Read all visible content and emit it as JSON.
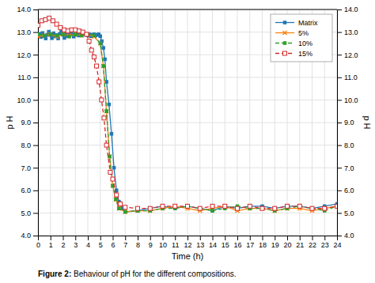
{
  "chart_data": {
    "type": "line",
    "xlabel": "Time (h)",
    "ylabel": "p H",
    "y2label": "p H",
    "caption_bold": "Figure 2:",
    "caption": " Behaviour of pH for the different compositions.",
    "xlim": [
      0,
      24
    ],
    "ylim": [
      4,
      14
    ],
    "y2lim": [
      4,
      14
    ],
    "xticks": [
      0,
      1,
      2,
      3,
      4,
      5,
      6,
      7,
      8,
      9,
      10,
      11,
      12,
      13,
      14,
      15,
      16,
      17,
      18,
      19,
      20,
      21,
      22,
      23,
      24
    ],
    "yticks": [
      {
        "value": 4,
        "label": "4.0"
      },
      {
        "value": 5,
        "label": "5.0"
      },
      {
        "value": 6,
        "label": "6.0"
      },
      {
        "value": 7,
        "label": "7.0"
      },
      {
        "value": 8,
        "label": "8.0"
      },
      {
        "value": 9,
        "label": "9.0"
      },
      {
        "value": 10,
        "label": "10.0"
      },
      {
        "value": 11,
        "label": "11.0"
      },
      {
        "value": 12,
        "label": "12.0"
      },
      {
        "value": 13,
        "label": "13.0"
      },
      {
        "value": 14,
        "label": "14.0"
      }
    ],
    "y2ticks": [
      {
        "value": 4,
        "label": "4.0"
      },
      {
        "value": 5,
        "label": "5.0"
      },
      {
        "value": 6,
        "label": "6.0"
      },
      {
        "value": 7,
        "label": "7.0"
      },
      {
        "value": 8,
        "label": "8.0"
      },
      {
        "value": 9,
        "label": "9.0"
      },
      {
        "value": 10,
        "label": "10.0"
      },
      {
        "value": 11,
        "label": "11.0"
      },
      {
        "value": 12,
        "label": "12.0"
      },
      {
        "value": 13,
        "label": "13.0"
      },
      {
        "value": 14,
        "label": "14.0"
      }
    ],
    "grid": true,
    "legend": "upper right",
    "series": [
      {
        "name": "Matrix",
        "marker": "square",
        "line_style": "solid",
        "x": [
          0.0,
          0.12,
          0.25,
          0.37,
          0.5,
          0.62,
          0.75,
          0.87,
          1.0,
          1.12,
          1.25,
          1.37,
          1.5,
          1.62,
          1.75,
          1.87,
          2.0,
          2.12,
          2.25,
          2.37,
          2.5,
          2.62,
          2.75,
          2.87,
          3.0,
          3.12,
          3.25,
          3.37,
          3.5,
          3.62,
          3.75,
          3.87,
          4.0,
          4.12,
          4.25,
          4.37,
          4.5,
          4.62,
          4.75,
          4.87,
          5.0,
          5.12,
          5.25,
          5.37,
          5.5,
          5.7,
          5.9,
          6.1,
          6.3,
          6.5,
          6.8,
          7.0,
          8.0,
          9.0,
          10.0,
          11.0,
          12.0,
          13.0,
          14.0,
          15.0,
          16.0,
          17.0,
          18.0,
          19.0,
          20.0,
          21.0,
          22.0,
          23.0,
          24.0
        ],
        "values": [
          12.85,
          12.92,
          12.78,
          12.96,
          12.82,
          12.72,
          12.88,
          13.02,
          12.87,
          12.73,
          12.95,
          12.82,
          12.87,
          12.72,
          12.92,
          13.02,
          12.88,
          12.74,
          12.96,
          12.82,
          12.9,
          13.0,
          12.95,
          12.8,
          12.9,
          12.88,
          12.85,
          12.9,
          12.85,
          12.95,
          12.92,
          12.88,
          12.85,
          12.9,
          12.82,
          12.88,
          12.9,
          12.85,
          12.88,
          12.9,
          12.82,
          12.6,
          12.3,
          11.8,
          10.8,
          9.8,
          8.5,
          7.0,
          6.0,
          5.5,
          5.2,
          5.05,
          5.1,
          5.2,
          5.3,
          5.2,
          5.3,
          5.2,
          5.1,
          5.3,
          5.2,
          5.3,
          5.3,
          5.2,
          5.3,
          5.3,
          5.2,
          5.3,
          5.4
        ]
      },
      {
        "name": "5%",
        "marker": "x",
        "line_style": "solid",
        "x": [
          0,
          0.5,
          1.0,
          1.5,
          2.0,
          2.5,
          3.0,
          3.5,
          4.0,
          4.5,
          5.0,
          5.25,
          5.5,
          5.75,
          6.0,
          6.25,
          6.5,
          7.0,
          8.0,
          9.0,
          10.0,
          11.0,
          12.0,
          13.0,
          14.0,
          15.0,
          16.0,
          17.0,
          18.0,
          19.0,
          20.0,
          21.0,
          22.0,
          23.0,
          24.0
        ],
        "values": [
          12.8,
          12.85,
          12.9,
          12.8,
          12.9,
          12.85,
          12.9,
          12.85,
          12.9,
          12.8,
          12.5,
          11.5,
          9.5,
          7.5,
          6.2,
          5.6,
          5.2,
          5.05,
          5.1,
          5.1,
          5.2,
          5.3,
          5.2,
          5.1,
          5.2,
          5.3,
          5.1,
          5.2,
          5.2,
          5.1,
          5.2,
          5.2,
          5.1,
          5.2,
          5.3
        ]
      },
      {
        "name": "10%",
        "marker": "square",
        "line_style": "dashed",
        "x": [
          0,
          0.5,
          1.0,
          1.5,
          2.0,
          2.5,
          3.0,
          3.5,
          4.0,
          4.5,
          5.0,
          5.25,
          5.5,
          5.75,
          6.0,
          6.25,
          6.5,
          7.0,
          8.0,
          9.0,
          10.0,
          11.0,
          12.0,
          13.0,
          14.0,
          15.0,
          16.0,
          17.0,
          18.0,
          19.0,
          20.0,
          21.0,
          22.0,
          23.0,
          24.0
        ],
        "values": [
          12.9,
          12.85,
          12.9,
          12.85,
          12.9,
          12.8,
          12.9,
          12.85,
          12.9,
          12.85,
          12.5,
          11.5,
          9.5,
          7.5,
          6.2,
          5.6,
          5.2,
          5.05,
          5.1,
          5.1,
          5.2,
          5.2,
          5.3,
          5.2,
          5.1,
          5.2,
          5.3,
          5.2,
          5.2,
          5.1,
          5.2,
          5.3,
          5.2,
          5.1,
          5.3
        ]
      },
      {
        "name": "15%",
        "marker": "square-open",
        "line_style": "dashed",
        "x": [
          0,
          0.3,
          0.6,
          0.9,
          1.2,
          1.5,
          1.8,
          2.1,
          2.4,
          2.7,
          3.0,
          3.3,
          3.6,
          3.9,
          4.1,
          4.3,
          4.5,
          4.7,
          4.9,
          5.1,
          5.3,
          5.5,
          5.8,
          6.0,
          6.3,
          6.6,
          7.0,
          8.0,
          9.0,
          10.0,
          11.0,
          12.0,
          13.0,
          14.0,
          15.0,
          16.0,
          17.0,
          18.0,
          19.0,
          20.0,
          21.0,
          22.0,
          23.0,
          24.0
        ],
        "values": [
          13.3,
          13.5,
          13.55,
          13.62,
          13.5,
          13.35,
          13.2,
          13.1,
          13.05,
          13.1,
          13.1,
          13.05,
          13.0,
          12.9,
          12.6,
          12.2,
          11.9,
          11.5,
          10.8,
          10.0,
          9.2,
          8.0,
          6.8,
          6.5,
          5.8,
          5.4,
          5.25,
          5.2,
          5.2,
          5.3,
          5.3,
          5.3,
          5.2,
          5.3,
          5.3,
          5.2,
          5.3,
          5.2,
          5.2,
          5.3,
          5.3,
          5.2,
          5.2,
          5.3
        ]
      }
    ]
  }
}
